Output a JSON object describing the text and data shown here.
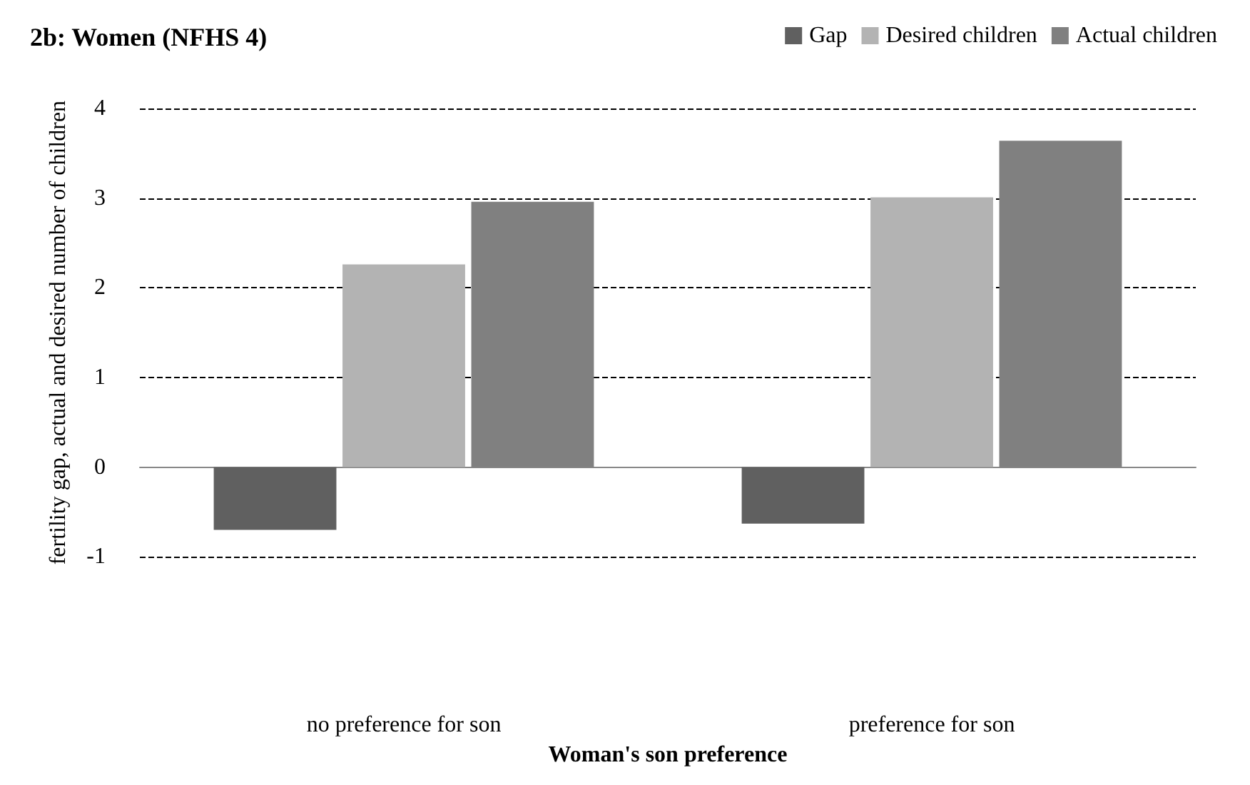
{
  "chart_data": {
    "type": "bar",
    "title": "2b: Women (NFHS 4)",
    "xlabel": "Woman's son preference",
    "ylabel": "fertility gap, actual and desired number of children",
    "categories": [
      "no preference for son",
      "preference for son"
    ],
    "series": [
      {
        "name": "Gap",
        "color": "#606060",
        "values": [
          -0.7,
          -0.63
        ]
      },
      {
        "name": "Desired children",
        "color": "#b3b3b3",
        "values": [
          2.26,
          3.01
        ]
      },
      {
        "name": "Actual children",
        "color": "#808080",
        "values": [
          2.96,
          3.64
        ]
      }
    ],
    "ylim": [
      -1,
      4
    ],
    "yticks": [
      -1,
      0,
      1,
      2,
      3,
      4
    ],
    "grid": "y",
    "legend": "top right"
  }
}
